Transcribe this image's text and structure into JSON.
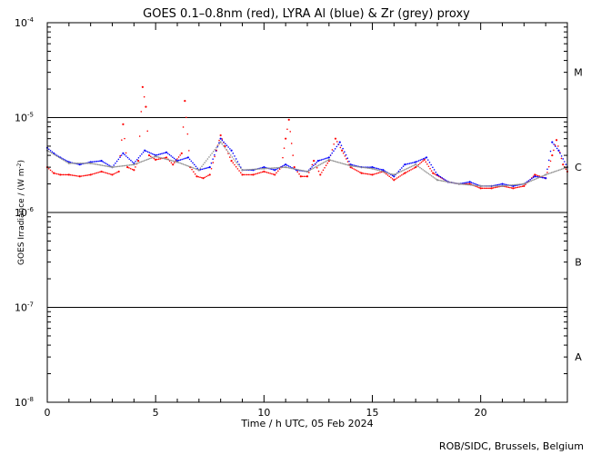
{
  "chart_data": {
    "type": "scatter",
    "title": "GOES 0.1–0.8nm (red), LYRA Al (blue) & Zr (grey) proxy",
    "xlabel": "Time / h UTC, 05 Feb 2024",
    "ylabel_text": "GOES Irradiance / (W m",
    "ylabel_exp": "-2",
    "ylabel_close": ")",
    "xlim": [
      0,
      24
    ],
    "ylim": [
      1e-08,
      0.0001
    ],
    "yscale": "log",
    "grid": false,
    "x_ticks": [
      {
        "value": 0,
        "label": "0"
      },
      {
        "value": 5,
        "label": "5"
      },
      {
        "value": 10,
        "label": "10"
      },
      {
        "value": 15,
        "label": "15"
      },
      {
        "value": 20,
        "label": "20"
      }
    ],
    "y_ticks": [
      {
        "value": 1e-08,
        "base": "10",
        "exp": "-8"
      },
      {
        "value": 1e-07,
        "base": "10",
        "exp": "-7"
      },
      {
        "value": 1e-06,
        "base": "10",
        "exp": "-6"
      },
      {
        "value": 1e-05,
        "base": "10",
        "exp": "-5"
      },
      {
        "value": 0.0001,
        "base": "10",
        "exp": "-4"
      }
    ],
    "class_lines": [
      1e-07,
      1e-06,
      1e-05
    ],
    "class_labels": [
      {
        "label": "A",
        "value": 3e-08
      },
      {
        "label": "B",
        "value": 3e-07
      },
      {
        "label": "C",
        "value": 3e-06
      },
      {
        "label": "M",
        "value": 3e-05
      }
    ],
    "series": [
      {
        "color": "#ff0000",
        "x": [
          0.0,
          0.3,
          0.6,
          1.0,
          1.5,
          2.0,
          2.5,
          3.0,
          3.3,
          3.5,
          3.7,
          4.0,
          4.2,
          4.4,
          4.55,
          4.7,
          5.0,
          5.5,
          5.8,
          6.2,
          6.35,
          6.6,
          6.9,
          7.2,
          7.5,
          7.8,
          8.0,
          8.2,
          8.5,
          9.0,
          9.5,
          10.0,
          10.5,
          10.8,
          11.0,
          11.15,
          11.4,
          11.7,
          12.0,
          12.3,
          12.6,
          13.0,
          13.3,
          13.6,
          14.0,
          14.5,
          15.0,
          15.5,
          16.0,
          16.5,
          17.0,
          17.4,
          17.8,
          18.5,
          19.0,
          19.5,
          20.0,
          20.5,
          21.0,
          21.5,
          22.0,
          22.5,
          23.0,
          23.3,
          23.5,
          23.8,
          24.0
        ],
        "y": [
          3e-06,
          2.6e-06,
          2.5e-06,
          2.5e-06,
          2.4e-06,
          2.5e-06,
          2.7e-06,
          2.5e-06,
          2.7e-06,
          8.5e-06,
          3e-06,
          2.8e-06,
          3.5e-06,
          2.1e-05,
          1.3e-05,
          4e-06,
          3.6e-06,
          3.8e-06,
          3.2e-06,
          4.2e-06,
          1.5e-05,
          3e-06,
          2.4e-06,
          2.3e-06,
          2.5e-06,
          4.5e-06,
          6.5e-06,
          5e-06,
          3.5e-06,
          2.5e-06,
          2.5e-06,
          2.7e-06,
          2.5e-06,
          3e-06,
          6e-06,
          9.5e-06,
          3e-06,
          2.4e-06,
          2.4e-06,
          3.5e-06,
          2.5e-06,
          3.5e-06,
          6e-06,
          4.5e-06,
          3e-06,
          2.6e-06,
          2.5e-06,
          2.7e-06,
          2.2e-06,
          2.6e-06,
          3e-06,
          3.6e-06,
          2.6e-06,
          2.1e-06,
          2e-06,
          2e-06,
          1.8e-06,
          1.8e-06,
          1.9e-06,
          1.8e-06,
          1.9e-06,
          2.5e-06,
          2.3e-06,
          4e-06,
          5.8e-06,
          3.2e-06,
          2.7e-06
        ]
      },
      {
        "color": "#0000ff",
        "x": [
          0.0,
          0.3,
          0.6,
          1.0,
          1.5,
          2.0,
          2.5,
          3.0,
          3.5,
          4.0,
          4.5,
          5.0,
          5.5,
          6.0,
          6.5,
          7.0,
          7.5,
          8.0,
          8.5,
          9.0,
          9.5,
          10.0,
          10.5,
          11.0,
          11.5,
          12.0,
          12.5,
          13.0,
          13.5,
          14.0,
          14.5,
          15.0,
          15.5,
          16.0,
          16.5,
          17.0,
          17.5,
          18.0,
          18.5,
          19.0,
          19.5,
          20.0,
          20.5,
          21.0,
          21.5,
          22.0,
          22.5,
          23.0,
          23.3,
          23.6,
          24.0
        ],
        "y": [
          4.8e-06,
          4.2e-06,
          3.8e-06,
          3.4e-06,
          3.2e-06,
          3.4e-06,
          3.5e-06,
          3e-06,
          4.2e-06,
          3.3e-06,
          4.5e-06,
          4e-06,
          4.3e-06,
          3.5e-06,
          3.8e-06,
          2.8e-06,
          3e-06,
          6e-06,
          4.5e-06,
          2.8e-06,
          2.8e-06,
          3e-06,
          2.8e-06,
          3.2e-06,
          2.8e-06,
          2.7e-06,
          3.5e-06,
          3.8e-06,
          5.5e-06,
          3.2e-06,
          3e-06,
          3e-06,
          2.8e-06,
          2.4e-06,
          3.2e-06,
          3.4e-06,
          3.8e-06,
          2.5e-06,
          2.1e-06,
          2e-06,
          2.1e-06,
          1.9e-06,
          1.9e-06,
          2e-06,
          1.9e-06,
          2e-06,
          2.4e-06,
          2.3e-06,
          5.5e-06,
          4.5e-06,
          3e-06
        ]
      },
      {
        "color": "#909090",
        "x": [
          0.0,
          1.0,
          2.0,
          3.0,
          4.0,
          5.0,
          6.0,
          7.0,
          8.0,
          9.0,
          10.0,
          11.0,
          12.0,
          13.0,
          14.0,
          15.0,
          16.0,
          17.0,
          18.0,
          19.0,
          20.0,
          21.0,
          22.0,
          23.0,
          24.0
        ],
        "y": [
          4.5e-06,
          3.3e-06,
          3.3e-06,
          3e-06,
          3.2e-06,
          3.9e-06,
          3.4e-06,
          2.8e-06,
          5.5e-06,
          2.8e-06,
          2.9e-06,
          3e-06,
          2.7e-06,
          3.6e-06,
          3.1e-06,
          2.9e-06,
          2.5e-06,
          3.2e-06,
          2.2e-06,
          2e-06,
          1.9e-06,
          1.9e-06,
          2e-06,
          2.5e-06,
          3e-06
        ]
      }
    ]
  },
  "credit": "ROB/SIDC, Brussels, Belgium"
}
